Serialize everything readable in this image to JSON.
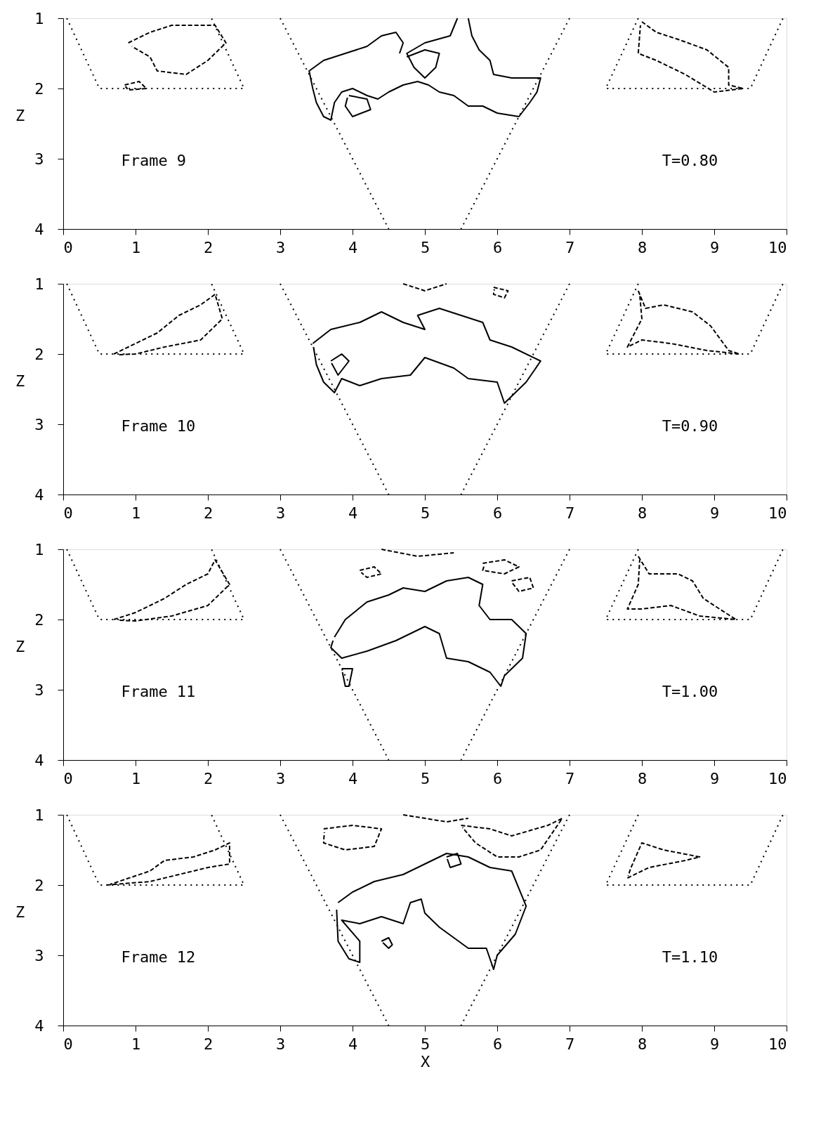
{
  "chart_data": [
    {
      "type": "line",
      "ylabel": "Z",
      "xlim": [
        0,
        10
      ],
      "ylim": [
        4,
        1
      ],
      "xticks": [
        0,
        1,
        2,
        3,
        4,
        5,
        6,
        7,
        8,
        9,
        10
      ],
      "yticks": [
        1,
        2,
        3,
        4
      ],
      "grid": false,
      "marker": "none",
      "annotations": [
        "Frame  9",
        "T=0.80"
      ],
      "series": [
        {
          "color": "#000000",
          "line_style": "dotted",
          "x": [
            0.05,
            0.5,
            2.5,
            2.05
          ],
          "values": [
            1,
            2,
            2,
            1
          ]
        },
        {
          "color": "#000000",
          "line_style": "dotted",
          "x": [
            3,
            3.75,
            4.5
          ],
          "values": [
            1,
            2.5,
            4
          ]
        },
        {
          "color": "#000000",
          "line_style": "dotted",
          "x": [
            7,
            6.25,
            5.5
          ],
          "values": [
            1,
            2.5,
            4
          ]
        },
        {
          "color": "#000000",
          "line_style": "dotted",
          "x": [
            7.95,
            7.5,
            9.5,
            9.95
          ],
          "values": [
            1,
            2,
            2,
            1
          ]
        },
        {
          "color": "#000000",
          "line_style": "solid",
          "x": [
            5.6,
            5.65,
            5.75,
            5.9,
            5.95,
            6.2,
            6.6,
            6.55,
            6.45,
            6.3,
            6.0,
            5.8,
            5.6,
            5.4,
            5.2,
            5.05,
            4.9,
            4.7,
            4.5,
            4.35,
            4.2,
            4.0,
            3.85,
            3.75,
            3.7,
            3.6,
            3.5,
            3.45,
            3.4,
            3.6,
            3.9,
            4.2,
            4.4,
            4.6,
            4.7,
            4.65
          ],
          "values": [
            1.0,
            1.25,
            1.45,
            1.6,
            1.8,
            1.85,
            1.85,
            2.05,
            2.2,
            2.4,
            2.35,
            2.25,
            2.25,
            2.1,
            2.05,
            1.95,
            1.9,
            1.95,
            2.05,
            2.15,
            2.1,
            2.0,
            2.05,
            2.2,
            2.45,
            2.4,
            2.2,
            2.0,
            1.75,
            1.6,
            1.5,
            1.4,
            1.25,
            1.2,
            1.35,
            1.5
          ]
        },
        {
          "color": "#000000",
          "line_style": "solid",
          "x": [
            5.45,
            5.35,
            5.0,
            4.75,
            4.85,
            5.0,
            5.15,
            5.2,
            5.0,
            4.75
          ],
          "values": [
            1.0,
            1.25,
            1.35,
            1.5,
            1.7,
            1.85,
            1.7,
            1.5,
            1.45,
            1.55
          ]
        },
        {
          "color": "#000000",
          "line_style": "solid",
          "x": [
            3.95,
            4.2,
            4.25,
            4.0,
            3.9,
            3.93
          ],
          "values": [
            2.1,
            2.15,
            2.3,
            2.4,
            2.25,
            2.13
          ]
        },
        {
          "color": "#000000",
          "line_style": "dashed",
          "x": [
            0.9,
            1.2,
            1.5,
            1.8,
            2.1,
            2.25,
            2.0,
            1.7,
            1.3,
            1.2,
            0.95
          ],
          "values": [
            1.35,
            1.2,
            1.1,
            1.1,
            1.1,
            1.35,
            1.6,
            1.8,
            1.75,
            1.55,
            1.4
          ]
        },
        {
          "color": "#000000",
          "line_style": "dashed",
          "x": [
            0.85,
            1.05,
            1.15,
            0.9,
            0.86
          ],
          "values": [
            1.95,
            1.9,
            2.0,
            2.02,
            1.97
          ]
        },
        {
          "color": "#000000",
          "line_style": "dashed",
          "x": [
            8.0,
            8.2,
            8.5,
            8.9,
            9.2,
            9.2,
            9.4,
            9.0,
            8.6,
            8.2,
            7.95,
            7.98
          ],
          "values": [
            1.05,
            1.2,
            1.3,
            1.45,
            1.7,
            1.95,
            2.0,
            2.05,
            1.8,
            1.6,
            1.5,
            1.1
          ]
        }
      ]
    },
    {
      "type": "line",
      "ylabel": "Z",
      "xlim": [
        0,
        10
      ],
      "ylim": [
        4,
        1
      ],
      "xticks": [
        0,
        1,
        2,
        3,
        4,
        5,
        6,
        7,
        8,
        9,
        10
      ],
      "yticks": [
        1,
        2,
        3,
        4
      ],
      "grid": false,
      "marker": "none",
      "annotations": [
        "Frame 10",
        "T=0.90"
      ],
      "series": [
        {
          "color": "#000000",
          "line_style": "dotted",
          "x": [
            0.05,
            0.5,
            2.5,
            2.05
          ],
          "values": [
            1,
            2,
            2,
            1
          ]
        },
        {
          "color": "#000000",
          "line_style": "dotted",
          "x": [
            3,
            3.75,
            4.5
          ],
          "values": [
            1,
            2.5,
            4
          ]
        },
        {
          "color": "#000000",
          "line_style": "dotted",
          "x": [
            7,
            6.25,
            5.5
          ],
          "values": [
            1,
            2.5,
            4
          ]
        },
        {
          "color": "#000000",
          "line_style": "dotted",
          "x": [
            7.95,
            7.5,
            9.5,
            9.95
          ],
          "values": [
            1,
            2,
            2,
            1
          ]
        },
        {
          "color": "#000000",
          "line_style": "solid",
          "x": [
            3.45,
            3.7,
            4.1,
            4.4,
            4.7,
            5.0,
            4.9,
            5.2,
            5.5,
            5.8,
            5.9,
            6.2,
            6.6,
            6.4,
            6.25,
            6.1,
            6.0,
            5.6,
            5.4,
            5.0,
            4.8,
            4.4,
            4.1,
            3.85,
            3.75,
            3.6,
            3.5,
            3.46
          ],
          "values": [
            1.85,
            1.65,
            1.55,
            1.4,
            1.55,
            1.65,
            1.45,
            1.35,
            1.45,
            1.55,
            1.8,
            1.9,
            2.1,
            2.4,
            2.55,
            2.7,
            2.4,
            2.35,
            2.2,
            2.05,
            2.3,
            2.35,
            2.45,
            2.35,
            2.55,
            2.4,
            2.15,
            1.9
          ]
        },
        {
          "color": "#000000",
          "line_style": "solid",
          "x": [
            3.7,
            3.85,
            3.95,
            3.8,
            3.71
          ],
          "values": [
            2.1,
            2.0,
            2.1,
            2.3,
            2.13
          ]
        },
        {
          "color": "#000000",
          "line_style": "dashed",
          "x": [
            4.7,
            5.0,
            5.3
          ],
          "values": [
            1.0,
            1.1,
            1.0
          ]
        },
        {
          "color": "#000000",
          "line_style": "dashed",
          "x": [
            5.95,
            6.15,
            6.1,
            5.95,
            5.96
          ],
          "values": [
            1.05,
            1.1,
            1.2,
            1.15,
            1.08
          ]
        },
        {
          "color": "#000000",
          "line_style": "dashed",
          "x": [
            0.7,
            1.0,
            1.3,
            1.6,
            1.9,
            2.1,
            2.2,
            1.9,
            1.4,
            1.0,
            0.75
          ],
          "values": [
            2.0,
            1.85,
            1.7,
            1.45,
            1.3,
            1.15,
            1.5,
            1.8,
            1.9,
            2.0,
            2.01
          ]
        },
        {
          "color": "#000000",
          "line_style": "dashed",
          "x": [
            7.95,
            8.05,
            8.3,
            8.7,
            8.95,
            9.2,
            9.35,
            8.9,
            8.4,
            8.0,
            7.8,
            8.0,
            7.97
          ],
          "values": [
            1.1,
            1.35,
            1.3,
            1.4,
            1.6,
            1.95,
            2.0,
            1.95,
            1.85,
            1.8,
            1.9,
            1.5,
            1.15
          ]
        }
      ]
    },
    {
      "type": "line",
      "ylabel": "Z",
      "xlim": [
        0,
        10
      ],
      "ylim": [
        4,
        1
      ],
      "xticks": [
        0,
        1,
        2,
        3,
        4,
        5,
        6,
        7,
        8,
        9,
        10
      ],
      "yticks": [
        1,
        2,
        3,
        4
      ],
      "grid": false,
      "marker": "none",
      "annotations": [
        "Frame 11",
        "T=1.00"
      ],
      "series": [
        {
          "color": "#000000",
          "line_style": "dotted",
          "x": [
            0.05,
            0.5,
            2.5,
            2.05
          ],
          "values": [
            1,
            2,
            2,
            1
          ]
        },
        {
          "color": "#000000",
          "line_style": "dotted",
          "x": [
            3,
            3.75,
            4.5
          ],
          "values": [
            1,
            2.5,
            4
          ]
        },
        {
          "color": "#000000",
          "line_style": "dotted",
          "x": [
            7,
            6.25,
            5.5
          ],
          "values": [
            1,
            2.5,
            4
          ]
        },
        {
          "color": "#000000",
          "line_style": "dotted",
          "x": [
            7.95,
            7.5,
            9.5,
            9.95
          ],
          "values": [
            1,
            2,
            2,
            1
          ]
        },
        {
          "color": "#000000",
          "line_style": "solid",
          "x": [
            3.75,
            3.9,
            4.2,
            4.5,
            4.7,
            5.0,
            5.3,
            5.6,
            5.8,
            5.75,
            5.9,
            6.2,
            6.4,
            6.35,
            6.1,
            6.05,
            5.9,
            5.6,
            5.3,
            5.2,
            5.0,
            4.6,
            4.2,
            3.85,
            3.7,
            3.73
          ],
          "values": [
            2.25,
            2.0,
            1.75,
            1.65,
            1.55,
            1.6,
            1.45,
            1.4,
            1.5,
            1.8,
            2.0,
            2.0,
            2.2,
            2.55,
            2.8,
            2.95,
            2.75,
            2.6,
            2.55,
            2.2,
            2.1,
            2.3,
            2.45,
            2.55,
            2.4,
            2.3
          ]
        },
        {
          "color": "#000000",
          "line_style": "solid",
          "x": [
            3.85,
            4.0,
            3.95,
            3.9,
            3.86
          ],
          "values": [
            2.7,
            2.7,
            2.95,
            2.95,
            2.75
          ]
        },
        {
          "color": "#000000",
          "line_style": "dashed",
          "x": [
            4.1,
            4.3,
            4.4,
            4.2,
            4.12
          ],
          "values": [
            1.3,
            1.25,
            1.35,
            1.4,
            1.33
          ]
        },
        {
          "color": "#000000",
          "line_style": "dashed",
          "x": [
            4.4,
            4.9,
            5.4
          ],
          "values": [
            1.0,
            1.1,
            1.05
          ]
        },
        {
          "color": "#000000",
          "line_style": "dashed",
          "x": [
            5.8,
            6.1,
            6.3,
            6.1,
            5.8,
            5.82
          ],
          "values": [
            1.2,
            1.15,
            1.25,
            1.35,
            1.3,
            1.23
          ]
        },
        {
          "color": "#000000",
          "line_style": "dashed",
          "x": [
            6.2,
            6.45,
            6.5,
            6.3,
            6.21
          ],
          "values": [
            1.45,
            1.4,
            1.55,
            1.6,
            1.48
          ]
        },
        {
          "color": "#000000",
          "line_style": "dashed",
          "x": [
            0.7,
            1.0,
            1.4,
            1.7,
            2.0,
            2.1,
            2.3,
            2.0,
            1.5,
            1.0,
            0.75
          ],
          "values": [
            2.0,
            1.9,
            1.7,
            1.5,
            1.35,
            1.15,
            1.5,
            1.8,
            1.95,
            2.02,
            2.01
          ]
        },
        {
          "color": "#000000",
          "line_style": "dashed",
          "x": [
            7.95,
            8.1,
            8.5,
            8.7,
            8.85,
            9.3,
            8.8,
            8.4,
            8.0,
            7.8,
            7.95,
            7.97
          ],
          "values": [
            1.1,
            1.35,
            1.35,
            1.45,
            1.7,
            2.0,
            1.95,
            1.8,
            1.85,
            1.85,
            1.5,
            1.15
          ]
        }
      ]
    },
    {
      "type": "line",
      "xlabel": "X",
      "ylabel": "Z",
      "xlim": [
        0,
        10
      ],
      "ylim": [
        4,
        1
      ],
      "xticks": [
        0,
        1,
        2,
        3,
        4,
        5,
        6,
        7,
        8,
        9,
        10
      ],
      "yticks": [
        1,
        2,
        3,
        4
      ],
      "grid": false,
      "marker": "none",
      "annotations": [
        "Frame 12",
        "T=1.10"
      ],
      "series": [
        {
          "color": "#000000",
          "line_style": "dotted",
          "x": [
            0.05,
            0.5,
            2.5,
            2.05
          ],
          "values": [
            1,
            2,
            2,
            1
          ]
        },
        {
          "color": "#000000",
          "line_style": "dotted",
          "x": [
            3,
            3.75,
            4.5
          ],
          "values": [
            1,
            2.5,
            4
          ]
        },
        {
          "color": "#000000",
          "line_style": "dotted",
          "x": [
            7,
            6.25,
            5.5
          ],
          "values": [
            1,
            2.5,
            4
          ]
        },
        {
          "color": "#000000",
          "line_style": "dotted",
          "x": [
            7.95,
            7.5,
            9.5,
            9.95
          ],
          "values": [
            1,
            2,
            2,
            1
          ]
        },
        {
          "color": "#000000",
          "line_style": "solid",
          "x": [
            3.8,
            4.0,
            4.3,
            4.7,
            5.0,
            5.3,
            5.6,
            5.9,
            6.2,
            6.4,
            6.25,
            6.0,
            5.95,
            5.85,
            5.6,
            5.2,
            5.0,
            4.95,
            4.8,
            4.7,
            4.4,
            4.1,
            3.85,
            4.1,
            4.1,
            3.95,
            3.8,
            3.78
          ],
          "values": [
            2.25,
            2.1,
            1.95,
            1.85,
            1.7,
            1.55,
            1.6,
            1.75,
            1.8,
            2.3,
            2.7,
            3.0,
            3.2,
            2.9,
            2.9,
            2.6,
            2.4,
            2.2,
            2.25,
            2.55,
            2.45,
            2.55,
            2.5,
            2.8,
            3.1,
            3.05,
            2.8,
            2.35
          ]
        },
        {
          "color": "#000000",
          "line_style": "solid",
          "x": [
            5.3,
            5.45,
            5.5,
            5.35,
            5.31
          ],
          "values": [
            1.6,
            1.55,
            1.7,
            1.75,
            1.63
          ]
        },
        {
          "color": "#000000",
          "line_style": "solid",
          "x": [
            4.4,
            4.5,
            4.55,
            4.5,
            4.42
          ],
          "values": [
            2.8,
            2.75,
            2.85,
            2.9,
            2.82
          ]
        },
        {
          "color": "#000000",
          "line_style": "dashed",
          "x": [
            3.6,
            4.0,
            4.4,
            4.3,
            3.9,
            3.6,
            3.61
          ],
          "values": [
            1.2,
            1.15,
            1.2,
            1.45,
            1.5,
            1.4,
            1.25
          ]
        },
        {
          "color": "#000000",
          "line_style": "dashed",
          "x": [
            4.7,
            5.3,
            5.6
          ],
          "values": [
            1.0,
            1.1,
            1.05
          ]
        },
        {
          "color": "#000000",
          "line_style": "dashed",
          "x": [
            5.5,
            5.9,
            6.2,
            6.7,
            6.9,
            6.6,
            6.3,
            6.0,
            5.7,
            5.52
          ],
          "values": [
            1.15,
            1.2,
            1.3,
            1.15,
            1.05,
            1.5,
            1.6,
            1.6,
            1.4,
            1.18
          ]
        },
        {
          "color": "#000000",
          "line_style": "dashed",
          "x": [
            0.6,
            1.2,
            1.6,
            2.0,
            2.3,
            2.3,
            2.1,
            1.8,
            1.4,
            1.2,
            0.65
          ],
          "values": [
            2.0,
            1.95,
            1.85,
            1.75,
            1.7,
            1.4,
            1.5,
            1.6,
            1.65,
            1.8,
            1.99
          ]
        },
        {
          "color": "#000000",
          "line_style": "dashed",
          "x": [
            7.8,
            8.1,
            8.6,
            8.8,
            8.3,
            8.0,
            7.85,
            7.81
          ],
          "values": [
            1.9,
            1.75,
            1.65,
            1.6,
            1.5,
            1.4,
            1.75,
            1.87
          ]
        }
      ]
    }
  ]
}
